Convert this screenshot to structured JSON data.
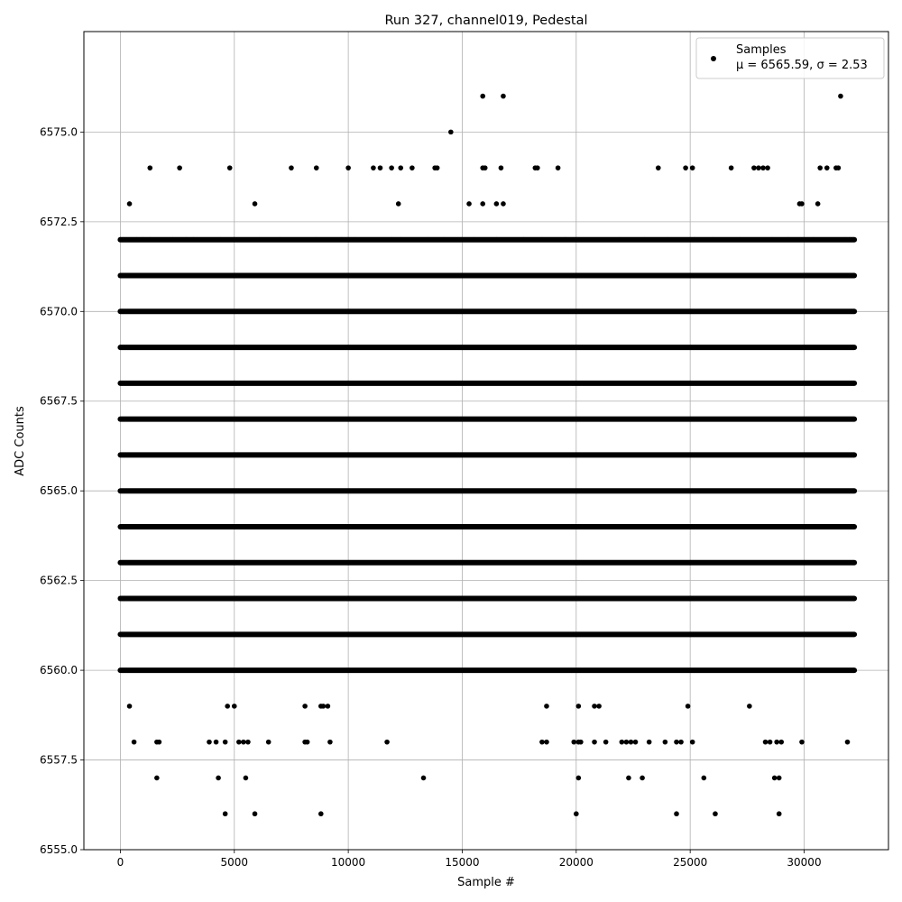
{
  "chart_data": {
    "type": "scatter",
    "title": "Run 327, channel019, Pedestal",
    "xlabel": "Sample #",
    "ylabel": "ADC Counts",
    "xlim": [
      -1600,
      33700
    ],
    "ylim": [
      6555.0,
      6577.8
    ],
    "xticks": [
      0,
      5000,
      10000,
      15000,
      20000,
      25000,
      30000
    ],
    "yticks": [
      6555.0,
      6557.5,
      6560.0,
      6562.5,
      6565.0,
      6567.5,
      6570.0,
      6572.5,
      6575.0
    ],
    "grid": true,
    "legend_position": "top-right",
    "marker_color": "#000000",
    "series": [
      {
        "name": "Samples",
        "legend_line2": "μ = 6565.59, σ = 2.53",
        "dense_bands": [
          {
            "y": 6564,
            "x_range": [
              0,
              32200
            ]
          },
          {
            "y": 6565,
            "x_range": [
              0,
              32200
            ]
          },
          {
            "y": 6566,
            "x_range": [
              0,
              32200
            ]
          },
          {
            "y": 6568,
            "x_range": [
              0,
              32200
            ]
          },
          {
            "y": 6567,
            "x_range": [
              0,
              32200
            ]
          },
          {
            "y": 6570,
            "x_range": [
              0,
              32200
            ]
          },
          {
            "y": 6562,
            "x_range": [
              0,
              32200
            ]
          },
          {
            "y": 6561,
            "x_range": [
              0,
              32200
            ]
          },
          {
            "y": 6563,
            "x_range": [
              0,
              32200
            ]
          },
          {
            "y": 6560,
            "x_range": [
              0,
              32200
            ]
          },
          {
            "y": 6569,
            "x_range": [
              0,
              32200
            ]
          },
          {
            "y": 6571,
            "x_range": [
              0,
              32200
            ]
          },
          {
            "y": 6572,
            "x_range": [
              0,
              32200
            ]
          }
        ],
        "points": [
          [
            1600,
            6557
          ],
          [
            4300,
            6557
          ],
          [
            5500,
            6557
          ],
          [
            13300,
            6557
          ],
          [
            20100,
            6557
          ],
          [
            22300,
            6557
          ],
          [
            22900,
            6557
          ],
          [
            25600,
            6557
          ],
          [
            28700,
            6557
          ],
          [
            28900,
            6557
          ],
          [
            4600,
            6556
          ],
          [
            5900,
            6556
          ],
          [
            8800,
            6556
          ],
          [
            20000,
            6556
          ],
          [
            24400,
            6556
          ],
          [
            26100,
            6556
          ],
          [
            28900,
            6556
          ],
          [
            600,
            6558
          ],
          [
            1600,
            6558
          ],
          [
            1700,
            6558
          ],
          [
            3900,
            6558
          ],
          [
            4200,
            6558
          ],
          [
            4600,
            6558
          ],
          [
            5200,
            6558
          ],
          [
            5400,
            6558
          ],
          [
            5600,
            6558
          ],
          [
            6500,
            6558
          ],
          [
            8100,
            6558
          ],
          [
            8200,
            6558
          ],
          [
            9200,
            6558
          ],
          [
            11700,
            6558
          ],
          [
            18500,
            6558
          ],
          [
            18700,
            6558
          ],
          [
            19900,
            6558
          ],
          [
            20100,
            6558
          ],
          [
            20200,
            6558
          ],
          [
            20800,
            6558
          ],
          [
            21300,
            6558
          ],
          [
            22000,
            6558
          ],
          [
            22200,
            6558
          ],
          [
            22400,
            6558
          ],
          [
            22600,
            6558
          ],
          [
            23200,
            6558
          ],
          [
            23900,
            6558
          ],
          [
            24400,
            6558
          ],
          [
            24600,
            6558
          ],
          [
            25100,
            6558
          ],
          [
            28300,
            6558
          ],
          [
            28500,
            6558
          ],
          [
            28800,
            6558
          ],
          [
            29000,
            6558
          ],
          [
            29900,
            6558
          ],
          [
            31900,
            6558
          ],
          [
            400,
            6559
          ],
          [
            4700,
            6559
          ],
          [
            5000,
            6559
          ],
          [
            8100,
            6559
          ],
          [
            8800,
            6559
          ],
          [
            8900,
            6559
          ],
          [
            9100,
            6559
          ],
          [
            18700,
            6559
          ],
          [
            20100,
            6559
          ],
          [
            20800,
            6559
          ],
          [
            21000,
            6559
          ],
          [
            24900,
            6559
          ],
          [
            27600,
            6559
          ],
          [
            0,
            6572
          ],
          [
            700,
            6572
          ],
          [
            1000,
            6572
          ],
          [
            1300,
            6572
          ],
          [
            2300,
            6572
          ],
          [
            2900,
            6572
          ],
          [
            3200,
            6572
          ],
          [
            4400,
            6572
          ],
          [
            5000,
            6572
          ],
          [
            6100,
            6572
          ],
          [
            7000,
            6572
          ],
          [
            8600,
            6572
          ],
          [
            9700,
            6572
          ],
          [
            10300,
            6572
          ],
          [
            11900,
            6572
          ],
          [
            12300,
            6572
          ],
          [
            13500,
            6572
          ],
          [
            14200,
            6572
          ],
          [
            15500,
            6572
          ],
          [
            16500,
            6572
          ],
          [
            17700,
            6572
          ],
          [
            18500,
            6572
          ],
          [
            19500,
            6572
          ],
          [
            21900,
            6572
          ],
          [
            23000,
            6572
          ],
          [
            24000,
            6572
          ],
          [
            25200,
            6572
          ],
          [
            26000,
            6572
          ],
          [
            27200,
            6572
          ],
          [
            28600,
            6572
          ],
          [
            29300,
            6572
          ],
          [
            30400,
            6572
          ],
          [
            31800,
            6572
          ],
          [
            32000,
            6572
          ],
          [
            2600,
            6574
          ],
          [
            1300,
            6574
          ],
          [
            4800,
            6574
          ],
          [
            7500,
            6574
          ],
          [
            8600,
            6574
          ],
          [
            10000,
            6574
          ],
          [
            11100,
            6574
          ],
          [
            11400,
            6574
          ],
          [
            11900,
            6574
          ],
          [
            12300,
            6574
          ],
          [
            12800,
            6574
          ],
          [
            13800,
            6574
          ],
          [
            13900,
            6574
          ],
          [
            15900,
            6574
          ],
          [
            16000,
            6574
          ],
          [
            16700,
            6574
          ],
          [
            18200,
            6574
          ],
          [
            18300,
            6574
          ],
          [
            19200,
            6574
          ],
          [
            23600,
            6574
          ],
          [
            24800,
            6574
          ],
          [
            25100,
            6574
          ],
          [
            26800,
            6574
          ],
          [
            27800,
            6574
          ],
          [
            28000,
            6574
          ],
          [
            28200,
            6574
          ],
          [
            28400,
            6574
          ],
          [
            30700,
            6574
          ],
          [
            31000,
            6574
          ],
          [
            31400,
            6574
          ],
          [
            31500,
            6574
          ],
          [
            400,
            6573
          ],
          [
            5900,
            6573
          ],
          [
            12200,
            6573
          ],
          [
            15300,
            6573
          ],
          [
            15900,
            6573
          ],
          [
            16500,
            6573
          ],
          [
            16800,
            6573
          ],
          [
            29800,
            6573
          ],
          [
            29900,
            6573
          ],
          [
            30600,
            6573
          ],
          [
            14500,
            6575
          ],
          [
            15900,
            6576
          ],
          [
            16800,
            6576
          ],
          [
            31600,
            6576
          ]
        ]
      }
    ]
  }
}
